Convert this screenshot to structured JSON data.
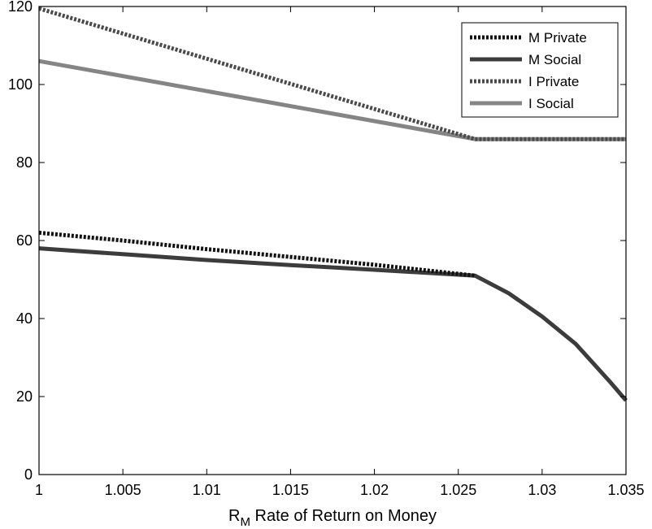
{
  "chart_data": {
    "type": "line",
    "xlabel_main": "R",
    "xlabel_sub": "M",
    "xlabel_rest": " Rate of Return on Money",
    "ylabel": "",
    "xlim": [
      1,
      1.035
    ],
    "ylim": [
      0,
      120
    ],
    "xticks": [
      1,
      1.005,
      1.01,
      1.015,
      1.02,
      1.025,
      1.03,
      1.035
    ],
    "xtick_labels": [
      "1",
      "1.005",
      "1.01",
      "1.015",
      "1.02",
      "1.025",
      "1.03",
      "1.035"
    ],
    "yticks": [
      0,
      20,
      40,
      60,
      80,
      100,
      120
    ],
    "ytick_labels": [
      "0",
      "20",
      "40",
      "60",
      "80",
      "100",
      "120"
    ],
    "grid": false,
    "legend_position": "top-right",
    "series": [
      {
        "name": "M Private",
        "style": "dotted",
        "color": "#111111",
        "x": [
          1,
          1.005,
          1.01,
          1.015,
          1.02,
          1.026
        ],
        "y": [
          62,
          60,
          57.8,
          55.8,
          53.8,
          51
        ]
      },
      {
        "name": "M Social",
        "style": "solid",
        "color": "#3c3c3c",
        "x": [
          1,
          1.005,
          1.01,
          1.015,
          1.02,
          1.026,
          1.028,
          1.03,
          1.032,
          1.034,
          1.035
        ],
        "y": [
          58,
          56.5,
          55,
          53.7,
          52.5,
          51,
          46.5,
          40.5,
          33.5,
          24,
          19
        ]
      },
      {
        "name": "I Private",
        "style": "dotted",
        "color": "#4a4a4a",
        "x": [
          1,
          1.026,
          1.035
        ],
        "y": [
          119.5,
          86,
          86
        ]
      },
      {
        "name": "I Social",
        "style": "solid",
        "color": "#858585",
        "x": [
          1,
          1.026,
          1.035
        ],
        "y": [
          106,
          86,
          86
        ]
      }
    ]
  }
}
